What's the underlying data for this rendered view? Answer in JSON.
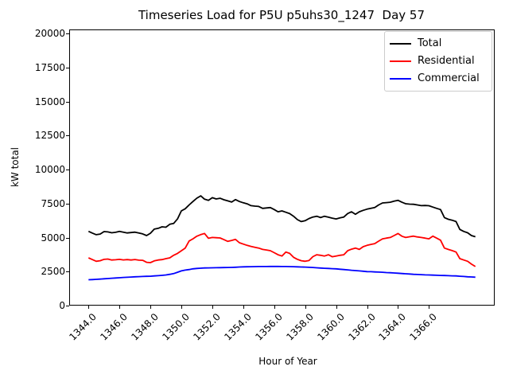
{
  "title": "Timeseries Load for P5U p5uhs30_1247  Day 57",
  "chart_data": {
    "type": "line",
    "title": "Timeseries Load for P5U p5uhs30_1247  Day 57",
    "xlabel": "Hour of Year",
    "ylabel": "kW total",
    "xlim": [
      1342.75,
      1370.25
    ],
    "ylim": [
      0,
      20300
    ],
    "grid": false,
    "legend_position": "upper right",
    "x_ticks": [
      1344,
      1346,
      1348,
      1350,
      1352,
      1354,
      1356,
      1358,
      1360,
      1362,
      1364,
      1366
    ],
    "x_tick_labels": [
      "1344.0",
      "1346.0",
      "1348.0",
      "1350.0",
      "1352.0",
      "1354.0",
      "1356.0",
      "1358.0",
      "1360.0",
      "1362.0",
      "1364.0",
      "1366.0"
    ],
    "y_ticks": [
      0,
      2500,
      5000,
      7500,
      10000,
      12500,
      15000,
      17500,
      20000
    ],
    "y_tick_labels": [
      "0",
      "2500",
      "5000",
      "7500",
      "10000",
      "12500",
      "15000",
      "17500",
      "20000"
    ],
    "x_start": 1344.0,
    "x_step": 0.25,
    "series": [
      {
        "name": "Total",
        "color": "#000000",
        "values": [
          5460,
          5330,
          5210,
          5260,
          5440,
          5420,
          5350,
          5390,
          5450,
          5400,
          5340,
          5370,
          5400,
          5340,
          5270,
          5150,
          5320,
          5620,
          5680,
          5790,
          5760,
          5980,
          6040,
          6370,
          6960,
          7120,
          7400,
          7650,
          7900,
          8070,
          7820,
          7740,
          7930,
          7840,
          7890,
          7780,
          7700,
          7610,
          7790,
          7650,
          7560,
          7480,
          7350,
          7310,
          7290,
          7150,
          7180,
          7210,
          7060,
          6900,
          6960,
          6860,
          6760,
          6570,
          6320,
          6180,
          6240,
          6400,
          6510,
          6570,
          6470,
          6570,
          6500,
          6430,
          6370,
          6450,
          6510,
          6770,
          6900,
          6710,
          6900,
          7000,
          7090,
          7150,
          7210,
          7400,
          7545,
          7570,
          7600,
          7680,
          7740,
          7600,
          7490,
          7460,
          7450,
          7400,
          7350,
          7360,
          7340,
          7240,
          7150,
          7060,
          6470,
          6350,
          6280,
          6180,
          5600,
          5450,
          5350,
          5150,
          5060
        ]
      },
      {
        "name": "Residential",
        "color": "#ff0000",
        "values": [
          3510,
          3380,
          3260,
          3300,
          3400,
          3420,
          3350,
          3370,
          3400,
          3360,
          3380,
          3350,
          3390,
          3340,
          3330,
          3180,
          3160,
          3290,
          3350,
          3380,
          3450,
          3510,
          3700,
          3840,
          4030,
          4230,
          4750,
          4910,
          5100,
          5220,
          5300,
          4950,
          5010,
          4990,
          4970,
          4850,
          4720,
          4790,
          4870,
          4620,
          4520,
          4430,
          4350,
          4290,
          4230,
          4130,
          4090,
          4035,
          3890,
          3740,
          3645,
          3935,
          3840,
          3550,
          3400,
          3300,
          3260,
          3310,
          3600,
          3740,
          3700,
          3645,
          3740,
          3590,
          3645,
          3700,
          3740,
          4035,
          4150,
          4230,
          4130,
          4330,
          4430,
          4500,
          4560,
          4740,
          4910,
          4960,
          5010,
          5150,
          5300,
          5100,
          5010,
          5060,
          5105,
          5050,
          5010,
          4960,
          4910,
          5105,
          4960,
          4810,
          4230,
          4130,
          4040,
          3940,
          3450,
          3350,
          3260,
          3050,
          2870
        ]
      },
      {
        "name": "Commercial",
        "color": "#0000ff",
        "values": [
          1900,
          1915,
          1930,
          1950,
          1970,
          1990,
          2010,
          2030,
          2050,
          2070,
          2085,
          2100,
          2120,
          2130,
          2140,
          2150,
          2160,
          2180,
          2200,
          2225,
          2250,
          2300,
          2350,
          2450,
          2550,
          2610,
          2650,
          2700,
          2730,
          2750,
          2765,
          2775,
          2780,
          2785,
          2790,
          2795,
          2800,
          2810,
          2820,
          2835,
          2850,
          2855,
          2860,
          2865,
          2870,
          2872,
          2875,
          2878,
          2880,
          2878,
          2875,
          2870,
          2865,
          2860,
          2850,
          2840,
          2830,
          2815,
          2800,
          2780,
          2760,
          2745,
          2730,
          2715,
          2700,
          2675,
          2650,
          2625,
          2600,
          2575,
          2550,
          2525,
          2500,
          2490,
          2475,
          2460,
          2450,
          2430,
          2415,
          2400,
          2380,
          2360,
          2340,
          2320,
          2300,
          2290,
          2275,
          2260,
          2250,
          2240,
          2230,
          2220,
          2210,
          2200,
          2190,
          2180,
          2160,
          2140,
          2120,
          2105,
          2090
        ]
      }
    ]
  }
}
